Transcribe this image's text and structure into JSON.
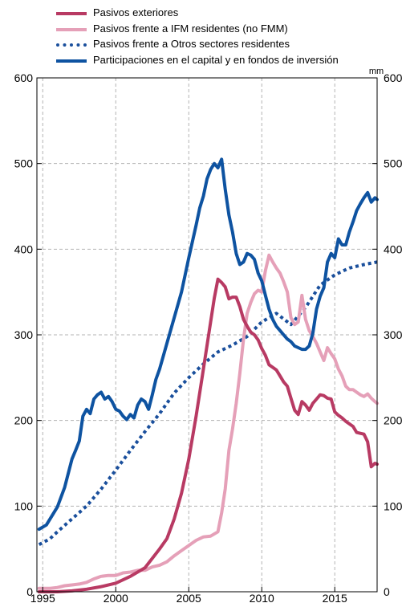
{
  "chart_data": {
    "type": "line",
    "unit_label": "mm",
    "xlim": [
      1994.6,
      2017.9
    ],
    "ylim": [
      0,
      600
    ],
    "x_ticks": [
      1995,
      2000,
      2005,
      2010,
      2015
    ],
    "y_ticks": [
      0,
      100,
      200,
      300,
      400,
      500,
      600
    ],
    "grid": true,
    "legend_position": "top",
    "series": [
      {
        "name": "Pasivos exteriores",
        "color": "#b83a63",
        "style": "solid",
        "points": [
          [
            1994.75,
            0
          ],
          [
            1996,
            0
          ],
          [
            1997,
            1
          ],
          [
            1998,
            3
          ],
          [
            1999,
            6
          ],
          [
            2000,
            10
          ],
          [
            2001,
            18
          ],
          [
            2002,
            28
          ],
          [
            2003,
            50
          ],
          [
            2003.5,
            62
          ],
          [
            2004,
            85
          ],
          [
            2004.5,
            115
          ],
          [
            2005,
            155
          ],
          [
            2005.5,
            205
          ],
          [
            2006,
            260
          ],
          [
            2006.5,
            315
          ],
          [
            2006.75,
            343
          ],
          [
            2007,
            365
          ],
          [
            2007.25,
            361
          ],
          [
            2007.5,
            356
          ],
          [
            2007.75,
            342
          ],
          [
            2008,
            344
          ],
          [
            2008.25,
            344
          ],
          [
            2008.5,
            333
          ],
          [
            2008.75,
            318
          ],
          [
            2009,
            310
          ],
          [
            2009.25,
            303
          ],
          [
            2009.5,
            300
          ],
          [
            2009.75,
            294
          ],
          [
            2010,
            284
          ],
          [
            2010.25,
            276
          ],
          [
            2010.5,
            265
          ],
          [
            2010.75,
            262
          ],
          [
            2011,
            259
          ],
          [
            2011.25,
            252
          ],
          [
            2011.5,
            245
          ],
          [
            2011.75,
            240
          ],
          [
            2012,
            226
          ],
          [
            2012.25,
            212
          ],
          [
            2012.5,
            207
          ],
          [
            2012.75,
            222
          ],
          [
            2013,
            218
          ],
          [
            2013.25,
            212
          ],
          [
            2013.5,
            220
          ],
          [
            2013.75,
            225
          ],
          [
            2014,
            230
          ],
          [
            2014.25,
            229
          ],
          [
            2014.5,
            226
          ],
          [
            2014.75,
            225
          ],
          [
            2015,
            210
          ],
          [
            2015.25,
            206
          ],
          [
            2015.5,
            203
          ],
          [
            2015.75,
            199
          ],
          [
            2016,
            196
          ],
          [
            2016.25,
            193
          ],
          [
            2016.5,
            186
          ],
          [
            2016.75,
            185
          ],
          [
            2017,
            184
          ],
          [
            2017.25,
            175
          ],
          [
            2017.5,
            146
          ],
          [
            2017.75,
            150
          ],
          [
            2017.9,
            149
          ]
        ]
      },
      {
        "name": "Pasivos frente a IFM residentes (no FMM)",
        "color": "#e5a0b8",
        "style": "solid",
        "points": [
          [
            1994.75,
            4
          ],
          [
            1995.5,
            4
          ],
          [
            1996,
            5
          ],
          [
            1996.5,
            7
          ],
          [
            1997,
            8
          ],
          [
            1997.5,
            9
          ],
          [
            1998,
            11
          ],
          [
            1998.5,
            15
          ],
          [
            1999,
            18
          ],
          [
            1999.5,
            19
          ],
          [
            2000,
            19
          ],
          [
            2000.5,
            22
          ],
          [
            2001,
            23
          ],
          [
            2001.5,
            25
          ],
          [
            2002,
            25
          ],
          [
            2002.5,
            29
          ],
          [
            2003,
            31
          ],
          [
            2003.5,
            35
          ],
          [
            2004,
            42
          ],
          [
            2004.5,
            48
          ],
          [
            2005,
            54
          ],
          [
            2005.5,
            60
          ],
          [
            2006,
            64
          ],
          [
            2006.5,
            65
          ],
          [
            2007,
            70
          ],
          [
            2007.25,
            92
          ],
          [
            2007.5,
            120
          ],
          [
            2007.75,
            165
          ],
          [
            2008,
            190
          ],
          [
            2008.25,
            220
          ],
          [
            2008.5,
            255
          ],
          [
            2008.75,
            295
          ],
          [
            2009,
            325
          ],
          [
            2009.25,
            338
          ],
          [
            2009.5,
            348
          ],
          [
            2009.75,
            352
          ],
          [
            2010,
            350
          ],
          [
            2010.25,
            375
          ],
          [
            2010.5,
            393
          ],
          [
            2010.75,
            385
          ],
          [
            2011,
            378
          ],
          [
            2011.25,
            372
          ],
          [
            2011.5,
            362
          ],
          [
            2011.75,
            350
          ],
          [
            2012,
            320
          ],
          [
            2012.25,
            312
          ],
          [
            2012.5,
            315
          ],
          [
            2012.75,
            346
          ],
          [
            2013,
            318
          ],
          [
            2013.25,
            305
          ],
          [
            2013.5,
            298
          ],
          [
            2013.75,
            290
          ],
          [
            2014,
            280
          ],
          [
            2014.25,
            270
          ],
          [
            2014.5,
            285
          ],
          [
            2014.75,
            278
          ],
          [
            2015,
            272
          ],
          [
            2015.25,
            260
          ],
          [
            2015.5,
            252
          ],
          [
            2015.75,
            240
          ],
          [
            2016,
            236
          ],
          [
            2016.25,
            236
          ],
          [
            2016.5,
            233
          ],
          [
            2016.75,
            230
          ],
          [
            2017,
            228
          ],
          [
            2017.25,
            231
          ],
          [
            2017.5,
            226
          ],
          [
            2017.75,
            222
          ],
          [
            2017.9,
            220
          ]
        ]
      },
      {
        "name": "Pasivos frente a Otros sectores residentes",
        "color": "#1a4f9c",
        "style": "dotted",
        "points": [
          [
            1994.75,
            55
          ],
          [
            1995.5,
            62
          ],
          [
            1996,
            70
          ],
          [
            1997,
            85
          ],
          [
            1998,
            100
          ],
          [
            1999,
            120
          ],
          [
            2000,
            142
          ],
          [
            2001,
            165
          ],
          [
            2002,
            187
          ],
          [
            2003,
            208
          ],
          [
            2004,
            232
          ],
          [
            2005,
            250
          ],
          [
            2006,
            266
          ],
          [
            2007,
            280
          ],
          [
            2008,
            288
          ],
          [
            2009,
            298
          ],
          [
            2010,
            315
          ],
          [
            2011,
            325
          ],
          [
            2012,
            312
          ],
          [
            2013,
            332
          ],
          [
            2014,
            358
          ],
          [
            2015,
            370
          ],
          [
            2016,
            378
          ],
          [
            2017,
            382
          ],
          [
            2017.9,
            385
          ]
        ]
      },
      {
        "name": "Participaciones en el capital y en fondos de inversión",
        "color": "#0e53a1",
        "style": "solid",
        "points": [
          [
            1994.75,
            73
          ],
          [
            1995.25,
            78
          ],
          [
            1995.75,
            92
          ],
          [
            1996,
            99
          ],
          [
            1996.5,
            122
          ],
          [
            1997,
            155
          ],
          [
            1997.25,
            165
          ],
          [
            1997.5,
            176
          ],
          [
            1997.75,
            205
          ],
          [
            1998,
            213
          ],
          [
            1998.25,
            208
          ],
          [
            1998.5,
            225
          ],
          [
            1998.75,
            230
          ],
          [
            1999,
            233
          ],
          [
            1999.25,
            225
          ],
          [
            1999.5,
            228
          ],
          [
            1999.75,
            222
          ],
          [
            2000,
            213
          ],
          [
            2000.25,
            211
          ],
          [
            2000.5,
            205
          ],
          [
            2000.75,
            201
          ],
          [
            2001,
            207
          ],
          [
            2001.25,
            203
          ],
          [
            2001.5,
            218
          ],
          [
            2001.75,
            225
          ],
          [
            2002,
            222
          ],
          [
            2002.25,
            213
          ],
          [
            2002.5,
            230
          ],
          [
            2002.75,
            248
          ],
          [
            2003,
            260
          ],
          [
            2003.5,
            290
          ],
          [
            2004,
            320
          ],
          [
            2004.5,
            350
          ],
          [
            2005,
            390
          ],
          [
            2005.5,
            428
          ],
          [
            2005.75,
            448
          ],
          [
            2006,
            462
          ],
          [
            2006.25,
            482
          ],
          [
            2006.5,
            493
          ],
          [
            2006.75,
            500
          ],
          [
            2007,
            495
          ],
          [
            2007.25,
            505
          ],
          [
            2007.5,
            470
          ],
          [
            2007.75,
            440
          ],
          [
            2008,
            420
          ],
          [
            2008.25,
            395
          ],
          [
            2008.5,
            382
          ],
          [
            2008.75,
            385
          ],
          [
            2009,
            395
          ],
          [
            2009.25,
            393
          ],
          [
            2009.5,
            388
          ],
          [
            2009.75,
            372
          ],
          [
            2010,
            363
          ],
          [
            2010.25,
            346
          ],
          [
            2010.5,
            330
          ],
          [
            2010.75,
            318
          ],
          [
            2011,
            310
          ],
          [
            2011.25,
            305
          ],
          [
            2011.5,
            300
          ],
          [
            2011.75,
            295
          ],
          [
            2012,
            292
          ],
          [
            2012.25,
            287
          ],
          [
            2012.5,
            285
          ],
          [
            2012.75,
            283
          ],
          [
            2013,
            283
          ],
          [
            2013.25,
            287
          ],
          [
            2013.5,
            302
          ],
          [
            2013.75,
            330
          ],
          [
            2014,
            345
          ],
          [
            2014.25,
            355
          ],
          [
            2014.5,
            385
          ],
          [
            2014.75,
            395
          ],
          [
            2015,
            390
          ],
          [
            2015.25,
            412
          ],
          [
            2015.5,
            405
          ],
          [
            2015.75,
            405
          ],
          [
            2016,
            420
          ],
          [
            2016.25,
            432
          ],
          [
            2016.5,
            445
          ],
          [
            2016.75,
            453
          ],
          [
            2017,
            460
          ],
          [
            2017.25,
            466
          ],
          [
            2017.5,
            455
          ],
          [
            2017.75,
            460
          ],
          [
            2017.9,
            458
          ]
        ]
      }
    ]
  }
}
